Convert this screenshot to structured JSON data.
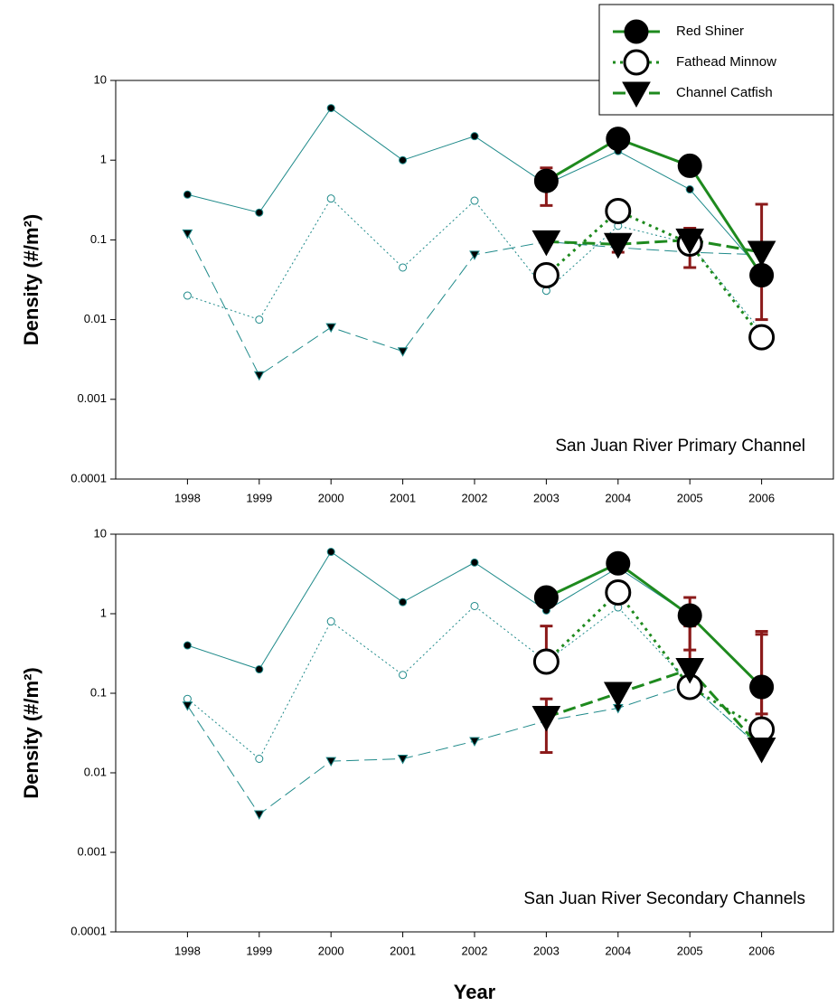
{
  "chart_data": [
    {
      "type": "line",
      "yscale": "log",
      "y_label": "Density (#/m²)",
      "annotation": "San Juan River Primary Channel",
      "legend": "top-right",
      "grid": false,
      "xlim": [
        1997,
        2007
      ],
      "xticks": [
        1998,
        1999,
        2000,
        2001,
        2002,
        2003,
        2004,
        2005,
        2006
      ],
      "ylim": [
        0.0001,
        10
      ],
      "yticks": [
        0.0001,
        0.001,
        0.01,
        0.1,
        1,
        10
      ],
      "series": [
        {
          "color": "#1f8a8a",
          "marker": "circle",
          "size": "small",
          "line": "solid",
          "x": [
            1998,
            1999,
            2000,
            2001,
            2002,
            2003,
            2004,
            2005,
            2006
          ],
          "values": [
            0.37,
            0.22,
            4.5,
            1.0,
            2.0,
            0.5,
            1.3,
            0.43,
            0.04
          ]
        },
        {
          "color": "#1f8a8a",
          "marker": "open-circle",
          "size": "small",
          "line": "dotted",
          "x": [
            1998,
            1999,
            2000,
            2001,
            2002,
            2003,
            2004,
            2005,
            2006
          ],
          "values": [
            0.02,
            0.01,
            0.33,
            0.045,
            0.31,
            0.023,
            0.15,
            0.09,
            0.007
          ]
        },
        {
          "color": "#1f8a8a",
          "marker": "triangle",
          "size": "small",
          "line": "dashed",
          "x": [
            1998,
            1999,
            2000,
            2001,
            2002,
            2003,
            2004,
            2005,
            2006
          ],
          "values": [
            0.12,
            0.002,
            0.008,
            0.004,
            0.065,
            0.095,
            0.08,
            0.07,
            0.065
          ]
        },
        {
          "name": "Red Shiner",
          "color": "#1e8a1e",
          "marker": "circle",
          "size": "large",
          "line": "solid",
          "x": [
            2003,
            2004,
            2005,
            2006
          ],
          "values": [
            0.55,
            1.85,
            0.85,
            0.036
          ]
        },
        {
          "name": "Fathead Minnow",
          "color": "#1e8a1e",
          "marker": "open-circle",
          "size": "large",
          "line": "dotted",
          "x": [
            2003,
            2004,
            2005,
            2006
          ],
          "values": [
            0.036,
            0.23,
            0.09,
            0.006
          ]
        },
        {
          "name": "Channel Catfish",
          "color": "#1e8a1e",
          "marker": "triangle",
          "size": "large",
          "line": "dashed",
          "x": [
            2003,
            2004,
            2005,
            2006
          ],
          "values": [
            0.095,
            0.088,
            0.1,
            0.07
          ]
        }
      ],
      "error_bar_color": "#8b1a1a",
      "error_bars": [
        {
          "x": 2003,
          "low": 0.27,
          "high": 0.8
        },
        {
          "x": 2004,
          "low": 0.07,
          "high": 0.1
        },
        {
          "x": 2005,
          "low": 0.045,
          "high": 0.14
        },
        {
          "x": 2006,
          "low": 0.01,
          "high": 0.28
        }
      ]
    },
    {
      "type": "line",
      "yscale": "log",
      "y_label": "Density (#/m²)",
      "x_label": "Year",
      "annotation": "San Juan River Secondary Channels",
      "grid": false,
      "xlim": [
        1997,
        2007
      ],
      "xticks": [
        1998,
        1999,
        2000,
        2001,
        2002,
        2003,
        2004,
        2005,
        2006
      ],
      "ylim": [
        0.0001,
        10
      ],
      "yticks": [
        0.0001,
        0.001,
        0.01,
        0.1,
        1,
        10
      ],
      "series": [
        {
          "color": "#1f8a8a",
          "marker": "circle",
          "size": "small",
          "line": "solid",
          "x": [
            1998,
            1999,
            2000,
            2001,
            2002,
            2003,
            2004,
            2005,
            2006
          ],
          "values": [
            0.4,
            0.2,
            6.0,
            1.4,
            4.4,
            1.1,
            3.8,
            0.95,
            0.12
          ]
        },
        {
          "color": "#1f8a8a",
          "marker": "open-circle",
          "size": "small",
          "line": "dotted",
          "x": [
            1998,
            1999,
            2000,
            2001,
            2002,
            2003,
            2004,
            2005,
            2006
          ],
          "values": [
            0.085,
            0.015,
            0.8,
            0.17,
            1.25,
            0.25,
            1.2,
            0.13,
            0.02
          ]
        },
        {
          "color": "#1f8a8a",
          "marker": "triangle",
          "size": "small",
          "line": "dashed",
          "x": [
            1998,
            1999,
            2000,
            2001,
            2002,
            2003,
            2004,
            2005,
            2006
          ],
          "values": [
            0.07,
            0.003,
            0.014,
            0.015,
            0.025,
            0.045,
            0.065,
            0.13,
            0.02
          ]
        },
        {
          "name": "Red Shiner",
          "color": "#1e8a1e",
          "marker": "circle",
          "size": "large",
          "line": "solid",
          "x": [
            2003,
            2004,
            2005,
            2006
          ],
          "values": [
            1.6,
            4.3,
            0.95,
            0.12
          ]
        },
        {
          "name": "Fathead Minnow",
          "color": "#1e8a1e",
          "marker": "open-circle",
          "size": "large",
          "line": "dotted",
          "x": [
            2003,
            2004,
            2005,
            2006
          ],
          "values": [
            0.25,
            1.85,
            0.12,
            0.035
          ]
        },
        {
          "name": "Channel Catfish",
          "color": "#1e8a1e",
          "marker": "triangle",
          "size": "large",
          "line": "dashed",
          "x": [
            2003,
            2004,
            2005,
            2006
          ],
          "values": [
            0.05,
            0.1,
            0.2,
            0.02
          ]
        }
      ],
      "error_bar_color": "#8b1a1a",
      "error_bars": [
        {
          "x": 2003,
          "low": 0.018,
          "high": 0.085
        },
        {
          "x": 2003,
          "low": 0.25,
          "high": 0.7
        },
        {
          "x": 2004,
          "low": 0.1,
          "high": 0.13
        },
        {
          "x": 2005,
          "low": 0.35,
          "high": 1.6
        },
        {
          "x": 2005,
          "low": 0.2,
          "high": 0.7
        },
        {
          "x": 2006,
          "low": 0.02,
          "high": 0.6
        },
        {
          "x": 2006,
          "low": 0.055,
          "high": 0.55
        }
      ]
    }
  ]
}
